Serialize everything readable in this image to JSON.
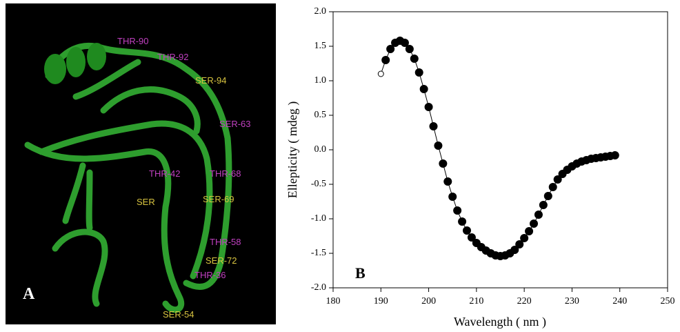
{
  "panel_a": {
    "letter": "A",
    "labels": [
      "THR-90",
      "THR-92",
      "SER-94",
      "SER-63",
      "THR-42",
      "THR-68",
      "SER-69",
      "SER",
      "THR-58",
      "SER-72",
      "THR-36",
      "SER-54"
    ]
  },
  "chart_data": {
    "type": "line",
    "panel_letter": "B",
    "x_label": "Wavelength ( nm )",
    "y_label": "Ellepticity ( mdeg )",
    "x": [
      190,
      191,
      192,
      193,
      194,
      195,
      196,
      197,
      198,
      199,
      200,
      201,
      202,
      203,
      204,
      205,
      206,
      207,
      208,
      209,
      210,
      211,
      212,
      213,
      214,
      215,
      216,
      217,
      218,
      219,
      220,
      221,
      222,
      223,
      224,
      225,
      226,
      227,
      228,
      229,
      230,
      231,
      232,
      233,
      234,
      235,
      236,
      237,
      238,
      239
    ],
    "values": [
      1.1,
      1.3,
      1.46,
      1.55,
      1.58,
      1.55,
      1.46,
      1.32,
      1.12,
      0.88,
      0.62,
      0.34,
      0.06,
      -0.2,
      -0.46,
      -0.68,
      -0.88,
      -1.04,
      -1.17,
      -1.27,
      -1.35,
      -1.41,
      -1.46,
      -1.5,
      -1.53,
      -1.54,
      -1.53,
      -1.5,
      -1.45,
      -1.37,
      -1.28,
      -1.18,
      -1.07,
      -0.94,
      -0.8,
      -0.67,
      -0.54,
      -0.43,
      -0.35,
      -0.29,
      -0.24,
      -0.2,
      -0.17,
      -0.15,
      -0.13,
      -0.12,
      -0.11,
      -0.1,
      -0.09,
      -0.08
    ],
    "color": "#000000",
    "hollow_first_marker": true,
    "xlim": [
      180,
      250
    ],
    "xticks": [
      180,
      190,
      200,
      210,
      220,
      230,
      240,
      250
    ],
    "ylim": [
      -2,
      2
    ],
    "yticks": [
      {
        "value": -2,
        "label": "-2.0"
      },
      -1.5,
      {
        "value": -1,
        "label": "-1.0"
      },
      -0.5,
      {
        "value": 0,
        "label": "0.0"
      },
      0.5,
      {
        "value": 1,
        "label": "1.0"
      },
      1.5,
      {
        "value": 2,
        "label": "2.0"
      }
    ]
  }
}
